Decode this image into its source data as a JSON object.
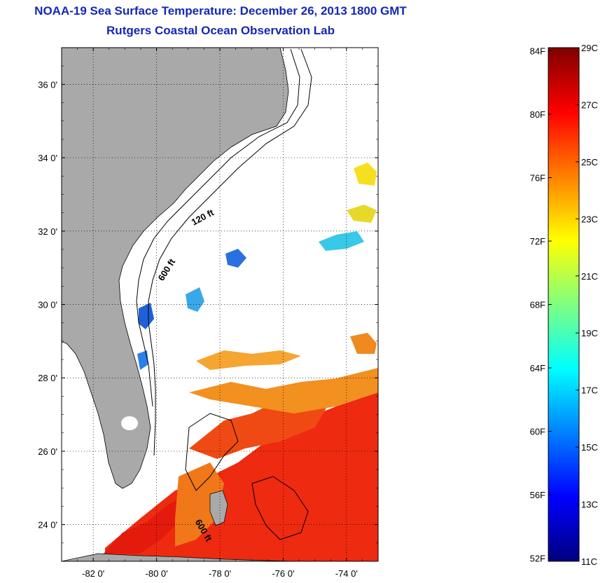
{
  "title": "NOAA-19 Sea Surface Temperature:  December 26, 2013 1800 GMT",
  "subtitle": "Rutgers Coastal Ocean Observation Lab",
  "map": {
    "lon_range": [
      -83,
      -73
    ],
    "lat_range": [
      23,
      37
    ],
    "lat_ticks": [
      {
        "value": 24,
        "label": "24 0'"
      },
      {
        "value": 26,
        "label": "26 0'"
      },
      {
        "value": 28,
        "label": "28 0'"
      },
      {
        "value": 30,
        "label": "30 0'"
      },
      {
        "value": 32,
        "label": "32 0'"
      },
      {
        "value": 34,
        "label": "34 0'"
      },
      {
        "value": 36,
        "label": "36 0'"
      }
    ],
    "lon_ticks": [
      {
        "value": -82,
        "label": "-82 0'"
      },
      {
        "value": -80,
        "label": "-80 0'"
      },
      {
        "value": -78,
        "label": "-78 0'"
      },
      {
        "value": -76,
        "label": "-76 0'"
      },
      {
        "value": -74,
        "label": "-74 0'"
      }
    ],
    "grid": true,
    "land_color": "#a9a9a9",
    "ocean_color": "#ffffff",
    "contours": [
      {
        "label": "120 ft",
        "lon": -78.5,
        "lat": 32.3
      },
      {
        "label": "600 ft",
        "lon": -79.6,
        "lat": 30.9
      },
      {
        "label": "600 ft",
        "lon": -78.6,
        "lat": 23.8
      }
    ]
  },
  "colorbar": {
    "min_c": 11,
    "max_c": 29,
    "colors": [
      "#000080",
      "#0000ff",
      "#0080ff",
      "#00ffff",
      "#80ff80",
      "#ffff00",
      "#ff8000",
      "#ff0000",
      "#800000"
    ],
    "celsius_ticks": [
      {
        "value": 29,
        "label": "29C"
      },
      {
        "value": 27,
        "label": "27C"
      },
      {
        "value": 25,
        "label": "25C"
      },
      {
        "value": 23,
        "label": "23C"
      },
      {
        "value": 21,
        "label": "21C"
      },
      {
        "value": 19,
        "label": "19C"
      },
      {
        "value": 17,
        "label": "17C"
      },
      {
        "value": 15,
        "label": "15C"
      },
      {
        "value": 13,
        "label": "13C"
      },
      {
        "value": 11,
        "label": "11C"
      }
    ],
    "fahrenheit_ticks": [
      {
        "value": 84,
        "label": "84F"
      },
      {
        "value": 80,
        "label": "80F"
      },
      {
        "value": 76,
        "label": "76F"
      },
      {
        "value": 72,
        "label": "72F"
      },
      {
        "value": 68,
        "label": "68F"
      },
      {
        "value": 64,
        "label": "64F"
      },
      {
        "value": 60,
        "label": "60F"
      },
      {
        "value": 56,
        "label": "56F"
      },
      {
        "value": 52,
        "label": "52F"
      }
    ]
  }
}
